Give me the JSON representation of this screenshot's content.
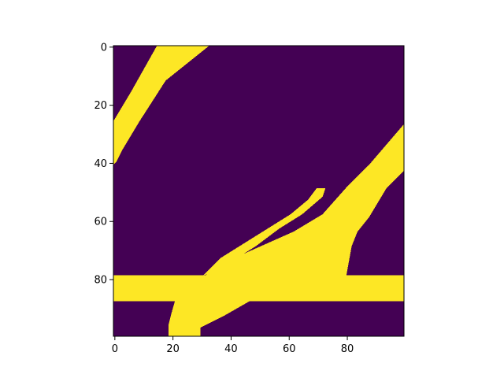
{
  "chart_data": {
    "type": "heatmap",
    "title": "",
    "xlabel": "",
    "ylabel": "",
    "grid": false,
    "colormap": "viridis",
    "colors": {
      "low": "#440154",
      "high": "#fde725",
      "frame": "#000000",
      "background": "#ffffff"
    },
    "shape": {
      "rows": 100,
      "cols": 100
    },
    "value_range": [
      0,
      1
    ],
    "xlim": [
      -0.5,
      99.5
    ],
    "ylim": [
      99.5,
      -0.5
    ],
    "x_ticks": [
      0,
      20,
      40,
      60,
      80
    ],
    "x_tick_labels": [
      "0",
      "20",
      "40",
      "60",
      "80"
    ],
    "y_ticks": [
      0,
      20,
      40,
      60,
      80
    ],
    "y_tick_labels": [
      "0",
      "20",
      "40",
      "60",
      "80"
    ],
    "regions": [
      {
        "description": "upper-left diagonal stroke",
        "value": 1,
        "polygon": [
          [
            15,
            0
          ],
          [
            33,
            0
          ],
          [
            18,
            12
          ],
          [
            9,
            26
          ],
          [
            3,
            36
          ],
          [
            1,
            40
          ],
          [
            0,
            41
          ],
          [
            0,
            26
          ],
          [
            6,
            16
          ]
        ]
      },
      {
        "description": "lower-right diagonal stroke",
        "value": 1,
        "polygon": [
          [
            100,
            27
          ],
          [
            100,
            43
          ],
          [
            94,
            49
          ],
          [
            88,
            59
          ],
          [
            84,
            64
          ],
          [
            82,
            69
          ],
          [
            80,
            80
          ],
          [
            80,
            80
          ],
          [
            52,
            85
          ],
          [
            38,
            93
          ],
          [
            30,
            97
          ],
          [
            30,
            100
          ],
          [
            19,
            100
          ],
          [
            19,
            96
          ],
          [
            20,
            92
          ],
          [
            22,
            85
          ],
          [
            30,
            80
          ],
          [
            44,
            72
          ],
          [
            62,
            64
          ],
          [
            72,
            58
          ],
          [
            80,
            49
          ],
          [
            88,
            41
          ],
          [
            94,
            34
          ]
        ]
      },
      {
        "description": "thin rising stroke",
        "value": 1,
        "polygon": [
          [
            31,
            79
          ],
          [
            37,
            73
          ],
          [
            45,
            68
          ],
          [
            53,
            63
          ],
          [
            61,
            58
          ],
          [
            67,
            53
          ],
          [
            70,
            49
          ],
          [
            73,
            49
          ],
          [
            72,
            52
          ],
          [
            65,
            58
          ],
          [
            57,
            63
          ],
          [
            49,
            69
          ],
          [
            41,
            74
          ],
          [
            35,
            78
          ]
        ]
      },
      {
        "description": "horizontal band",
        "value": 1,
        "polygon": [
          [
            0,
            79
          ],
          [
            100,
            79
          ],
          [
            100,
            88
          ],
          [
            0,
            88
          ]
        ]
      }
    ]
  }
}
